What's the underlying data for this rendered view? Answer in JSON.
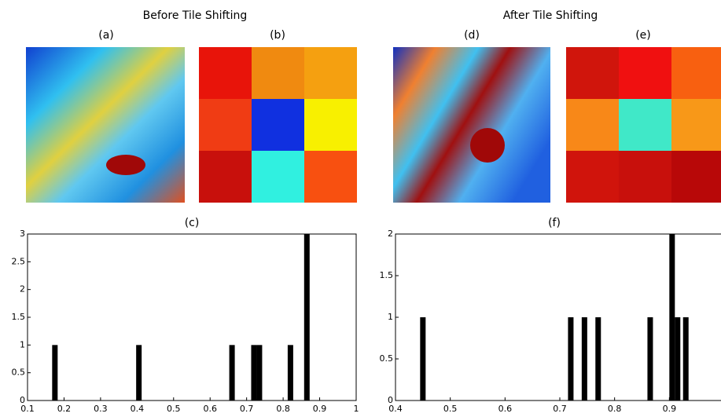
{
  "figure": {
    "before_title": "Before Tile Shifting",
    "after_title": "After Tile Shifting",
    "labels": {
      "a": "(a)",
      "b": "(b)",
      "d": "(d)",
      "e": "(e)"
    }
  },
  "chart_data": [
    {
      "type": "bar",
      "title": "(c)",
      "color": "#000000",
      "x": [
        0.175,
        0.405,
        0.66,
        0.72,
        0.735,
        0.82,
        0.865
      ],
      "values": [
        1,
        1,
        1,
        1,
        1,
        1,
        3
      ],
      "xlim": [
        0.1,
        1
      ],
      "xticks": [
        0.1,
        0.2,
        0.3,
        0.4,
        0.5,
        0.6,
        0.7,
        0.8,
        0.9,
        1
      ],
      "ylim": [
        0,
        3
      ],
      "yticks": [
        0,
        0.5,
        1,
        1.5,
        2,
        2.5,
        3
      ]
    },
    {
      "type": "bar",
      "title": "(f)",
      "color": "#000000",
      "x": [
        0.45,
        0.72,
        0.745,
        0.77,
        0.865,
        0.905,
        0.915,
        0.93
      ],
      "values": [
        1,
        1,
        1,
        1,
        1,
        2,
        1,
        1
      ],
      "xlim": [
        0.4,
        1
      ],
      "xticks": [
        0.4,
        0.5,
        0.6,
        0.7,
        0.8,
        0.9
      ],
      "ylim": [
        0,
        2
      ],
      "yticks": [
        0,
        0.5,
        1,
        1.5,
        2
      ]
    }
  ]
}
